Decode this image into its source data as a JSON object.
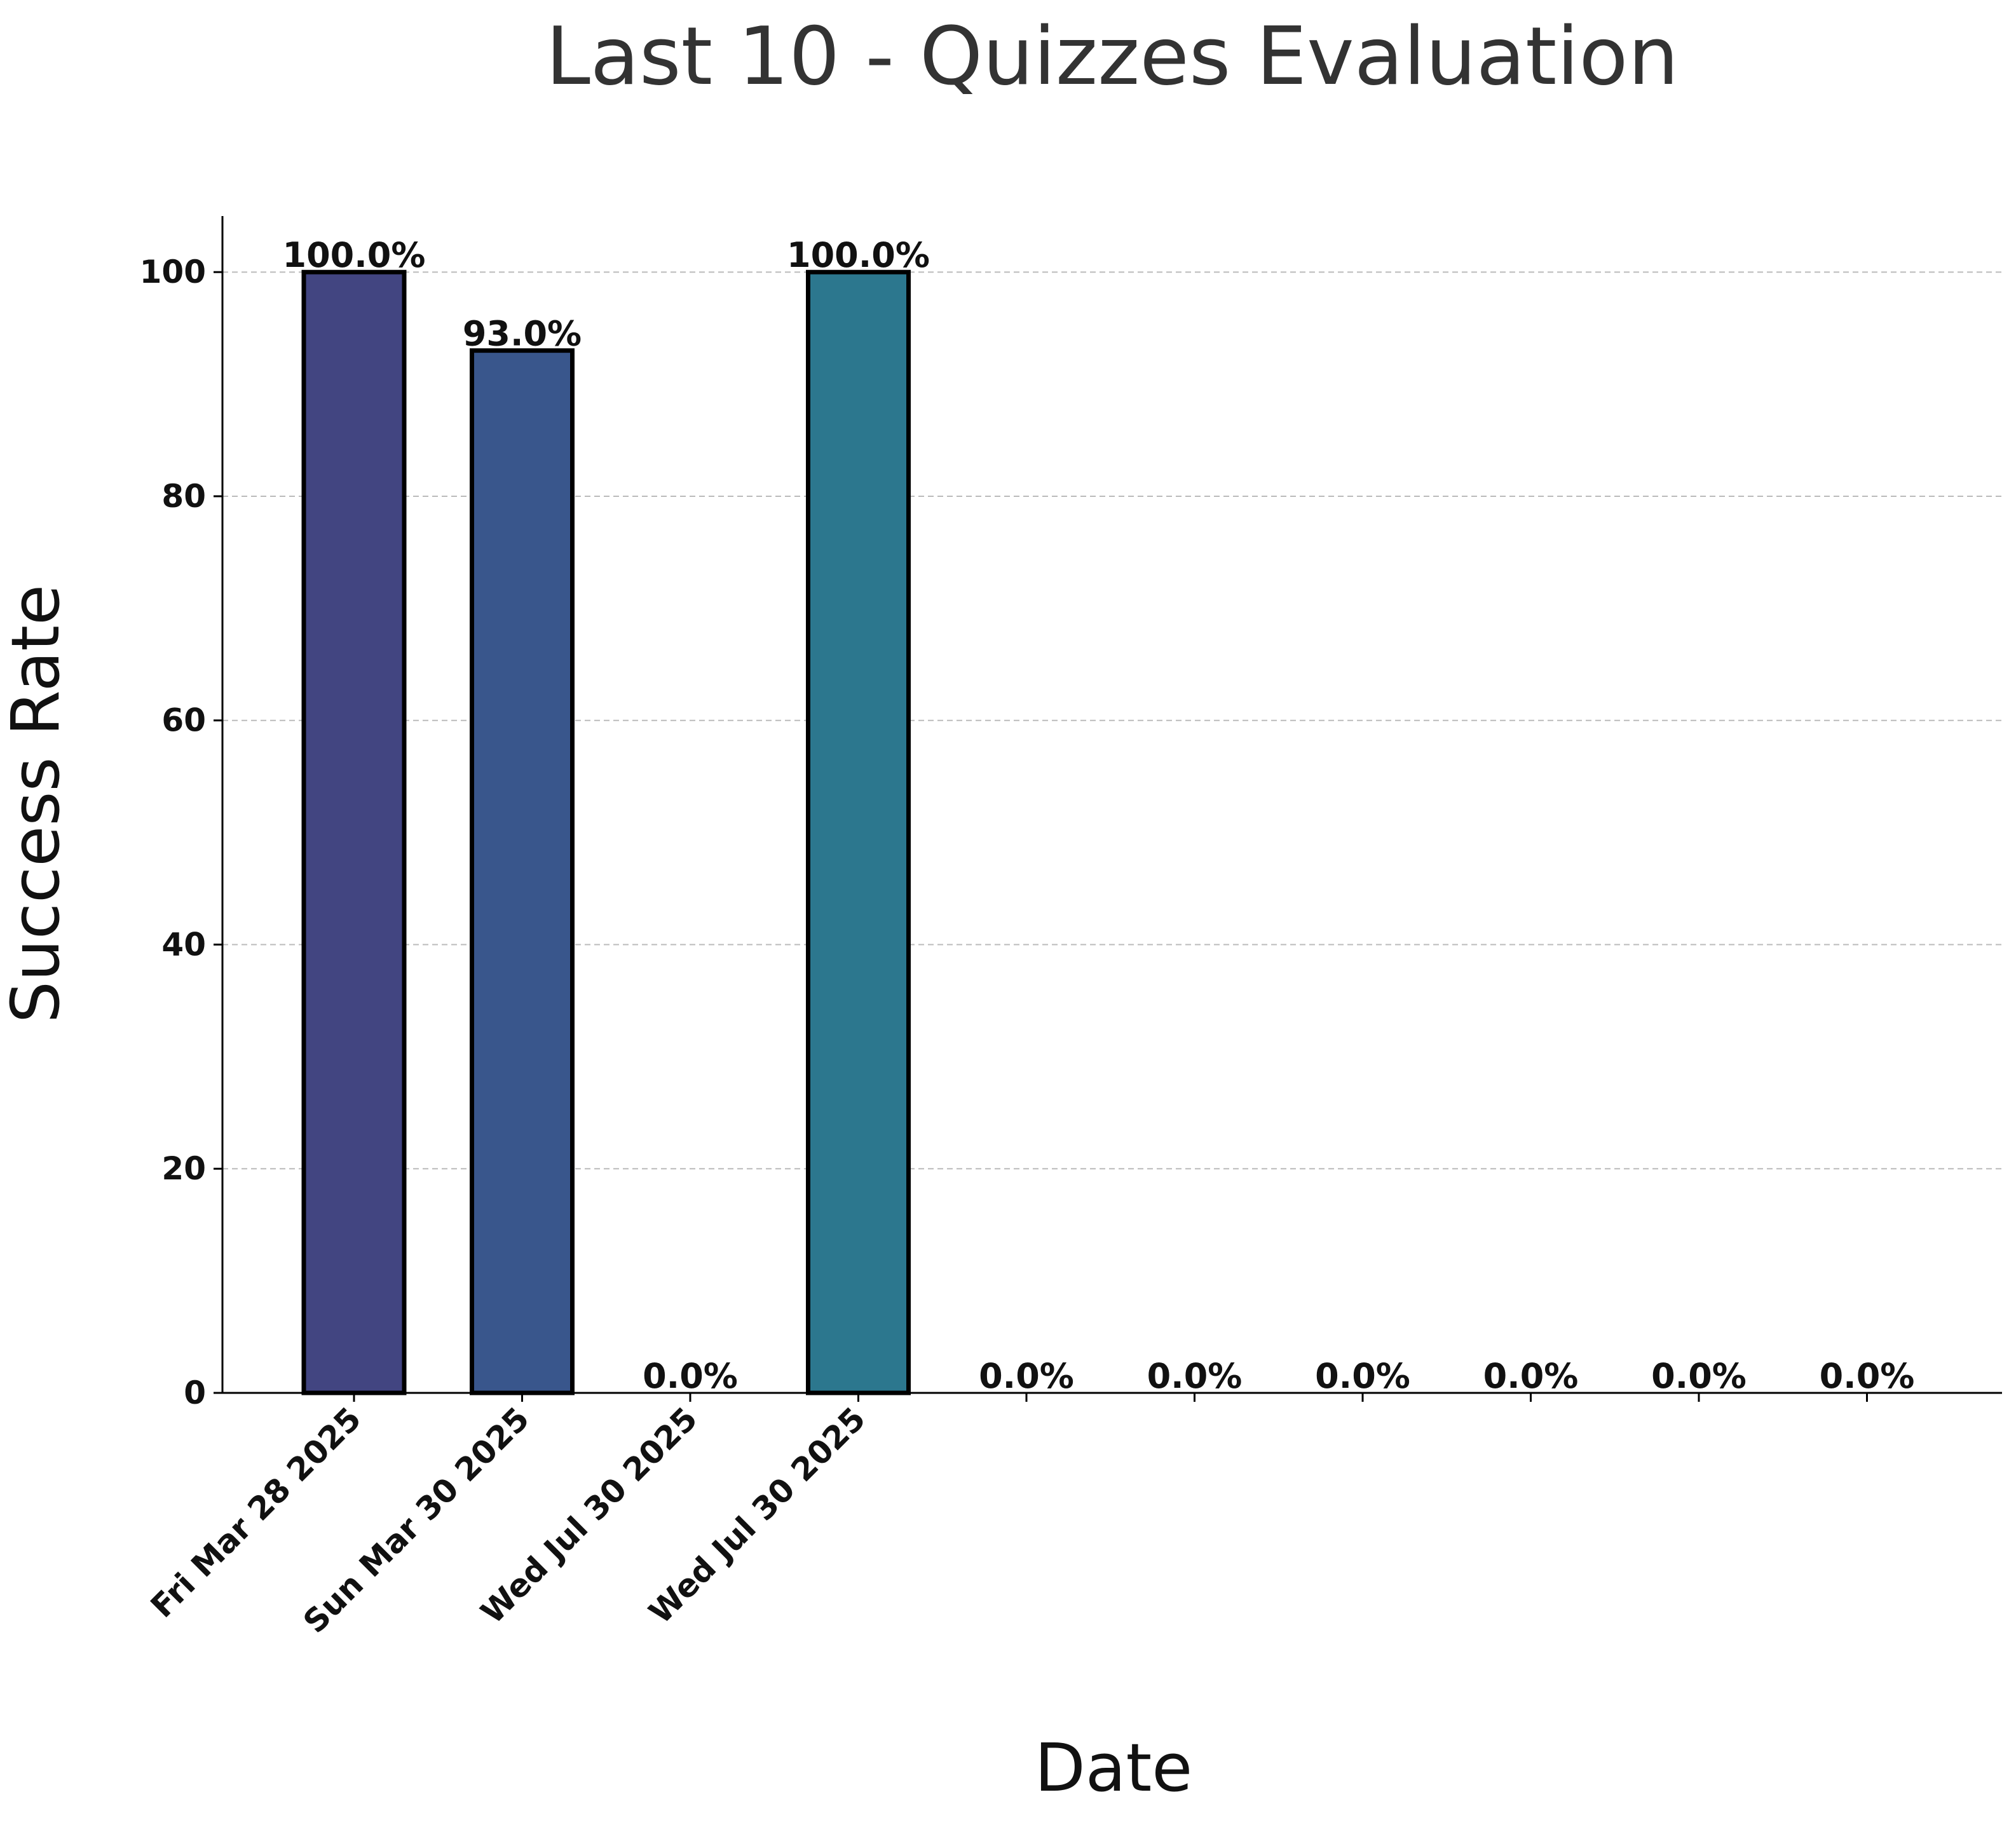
{
  "chart_data": {
    "type": "bar",
    "title": "Last 10 - Quizzes Evaluation",
    "xlabel": "Date",
    "ylabel": "Success Rate",
    "categories": [
      "Fri Mar 28 2025",
      "Sun Mar 30 2025",
      "Wed Jul 30 2025",
      "Wed Jul 30 2025",
      "",
      "",
      "",
      "",
      "",
      ""
    ],
    "values": [
      100.0,
      93.0,
      0.0,
      100.0,
      0.0,
      0.0,
      0.0,
      0.0,
      0.0,
      0.0
    ],
    "value_labels": [
      "100.0%",
      "93.0%",
      "0.0%",
      "100.0%",
      "0.0%",
      "0.0%",
      "0.0%",
      "0.0%",
      "0.0%",
      "0.0%"
    ],
    "bar_colors": [
      "#424581",
      "#39568c",
      "#30698e",
      "#2c778e",
      "#26878e",
      "#22a785",
      "#2cb27a",
      "#49c26b",
      "#75d054",
      "#addc30"
    ],
    "edge_color": "#000000",
    "ylim": [
      0,
      105
    ],
    "yticks": [
      0,
      20,
      40,
      60,
      80,
      100
    ],
    "grid": "horizontal dashed",
    "legend": "none"
  }
}
